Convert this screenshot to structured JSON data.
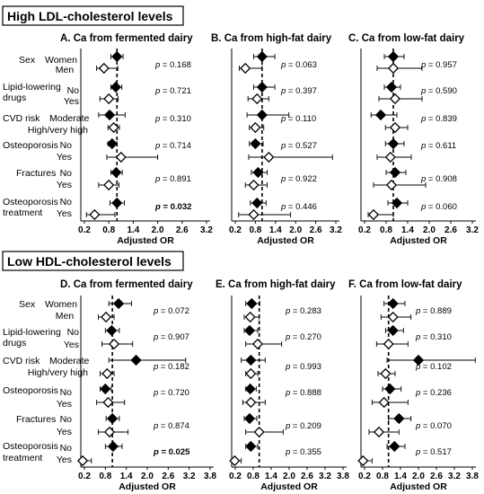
{
  "sections": [
    {
      "title": "High LDL-cholesterol levels"
    },
    {
      "title": "Low HDL-cholesterol levels"
    }
  ],
  "row_labels": {
    "groups": [
      {
        "label": "Sex",
        "levels": [
          "Women",
          "Men"
        ]
      },
      {
        "label": "Lipid-lowering drugs",
        "label_lines": [
          "Lipid-lowering",
          "drugs"
        ],
        "levels": [
          "No",
          "Yes"
        ]
      },
      {
        "label": "CVD risk",
        "levels": [
          "Moderate",
          "High/very high"
        ]
      },
      {
        "label": "Osteoporosis",
        "levels": [
          "No",
          "Yes"
        ]
      },
      {
        "label": "Fractures",
        "levels": [
          "No",
          "Yes"
        ]
      },
      {
        "label": "Osteoporosis treatment",
        "label_lines": [
          "Osteoporosis",
          "treatment"
        ],
        "levels": [
          "No",
          "Yes"
        ]
      }
    ]
  },
  "legend_note": {
    "filled_marker": "diamond-filled",
    "open_marker": "diamond-open",
    "reference_line": "dashed at OR = 1"
  },
  "chart_data": [
    {
      "type": "forest",
      "title": "A. Ca from fermented dairy",
      "xlabel": "Adjusted OR",
      "xlim": [
        0.0,
        3.2
      ],
      "xticks": [
        0.2,
        0.8,
        1.4,
        2.0,
        2.6,
        3.2
      ],
      "reference": 1.0,
      "rows": [
        {
          "group": "Sex",
          "level": "Women",
          "or": 1.0,
          "lo": 0.85,
          "hi": 1.15
        },
        {
          "group": "Sex",
          "level": "Men",
          "or": 0.68,
          "lo": 0.5,
          "hi": 1.02
        },
        {
          "group": "Lipid-lowering drugs",
          "level": "No",
          "or": 0.97,
          "lo": 0.85,
          "hi": 1.12
        },
        {
          "group": "Lipid-lowering drugs",
          "level": "Yes",
          "or": 0.8,
          "lo": 0.58,
          "hi": 1.03
        },
        {
          "group": "CVD risk",
          "level": "Moderate",
          "or": 0.82,
          "lo": 0.55,
          "hi": 1.2
        },
        {
          "group": "CVD risk",
          "level": "High/very high",
          "or": 0.92,
          "lo": 0.78,
          "hi": 1.06
        },
        {
          "group": "Osteoporosis",
          "level": "No",
          "or": 0.88,
          "lo": 0.78,
          "hi": 1.0
        },
        {
          "group": "Osteoporosis",
          "level": "Yes",
          "or": 1.1,
          "lo": 0.75,
          "hi": 2.0
        },
        {
          "group": "Fractures",
          "level": "No",
          "or": 0.98,
          "lo": 0.85,
          "hi": 1.13
        },
        {
          "group": "Fractures",
          "level": "Yes",
          "or": 0.8,
          "lo": 0.55,
          "hi": 1.05
        },
        {
          "group": "Osteoporosis treatment",
          "level": "No",
          "or": 1.0,
          "lo": 0.83,
          "hi": 1.18
        },
        {
          "group": "Osteoporosis treatment",
          "level": "Yes",
          "or": 0.45,
          "lo": 0.25,
          "hi": 0.95
        }
      ],
      "p_values": [
        "p = 0.168",
        "p = 0.721",
        "p = 0.310",
        "p = 0.714",
        "p = 0.891",
        "p = 0.032"
      ],
      "p_bold": [
        false,
        false,
        false,
        false,
        false,
        true
      ]
    },
    {
      "type": "forest",
      "title": "B. Ca from high-fat dairy",
      "xlabel": "Adjusted OR",
      "xlim": [
        0.0,
        3.2
      ],
      "xticks": [
        0.2,
        0.8,
        1.4,
        2.0,
        2.6,
        3.2
      ],
      "reference": 1.0,
      "rows": [
        {
          "group": "Sex",
          "level": "Women",
          "or": 1.0,
          "lo": 0.75,
          "hi": 1.38
        },
        {
          "group": "Sex",
          "level": "Men",
          "or": 0.5,
          "lo": 0.32,
          "hi": 1.0
        },
        {
          "group": "Lipid-lowering drugs",
          "level": "No",
          "or": 1.0,
          "lo": 0.75,
          "hi": 1.38
        },
        {
          "group": "Lipid-lowering drugs",
          "level": "Yes",
          "or": 0.85,
          "lo": 0.58,
          "hi": 1.2
        },
        {
          "group": "CVD risk",
          "level": "Moderate",
          "or": 1.0,
          "lo": 0.55,
          "hi": 1.8
        },
        {
          "group": "CVD risk",
          "level": "High/very high",
          "or": 0.8,
          "lo": 0.62,
          "hi": 1.05
        },
        {
          "group": "Osteoporosis",
          "level": "No",
          "or": 0.8,
          "lo": 0.62,
          "hi": 1.03
        },
        {
          "group": "Osteoporosis",
          "level": "Yes",
          "or": 1.2,
          "lo": 0.6,
          "hi": 3.1
        },
        {
          "group": "Fractures",
          "level": "No",
          "or": 0.88,
          "lo": 0.68,
          "hi": 1.15
        },
        {
          "group": "Fractures",
          "level": "Yes",
          "or": 0.75,
          "lo": 0.5,
          "hi": 1.15
        },
        {
          "group": "Osteoporosis treatment",
          "level": "No",
          "or": 0.85,
          "lo": 0.65,
          "hi": 1.12
        },
        {
          "group": "Osteoporosis treatment",
          "level": "Yes",
          "or": 0.75,
          "lo": 0.3,
          "hi": 1.85
        }
      ],
      "p_values": [
        "p = 0.063",
        "p = 0.397",
        "p = 0.110",
        "p = 0.527",
        "p = 0.922",
        "p = 0.446"
      ],
      "p_bold": [
        false,
        false,
        false,
        false,
        false,
        false
      ]
    },
    {
      "type": "forest",
      "title": "C. Ca from low-fat dairy",
      "xlabel": "Adjusted OR",
      "xlim": [
        0.0,
        3.2
      ],
      "xticks": [
        0.2,
        0.8,
        1.4,
        2.0,
        2.6,
        3.2
      ],
      "reference": 1.0,
      "rows": [
        {
          "group": "Sex",
          "level": "Women",
          "or": 1.0,
          "lo": 0.75,
          "hi": 1.3
        },
        {
          "group": "Sex",
          "level": "Men",
          "or": 1.0,
          "lo": 0.55,
          "hi": 1.8
        },
        {
          "group": "Lipid-lowering drugs",
          "level": "No",
          "or": 0.95,
          "lo": 0.75,
          "hi": 1.2
        },
        {
          "group": "Lipid-lowering drugs",
          "level": "Yes",
          "or": 1.05,
          "lo": 0.6,
          "hi": 1.8
        },
        {
          "group": "CVD risk",
          "level": "Moderate",
          "or": 0.65,
          "lo": 0.38,
          "hi": 1.1
        },
        {
          "group": "CVD risk",
          "level": "High/very high",
          "or": 1.05,
          "lo": 0.78,
          "hi": 1.4
        },
        {
          "group": "Osteoporosis",
          "level": "No",
          "or": 1.0,
          "lo": 0.78,
          "hi": 1.3
        },
        {
          "group": "Osteoporosis",
          "level": "Yes",
          "or": 0.92,
          "lo": 0.55,
          "hi": 1.5
        },
        {
          "group": "Fractures",
          "level": "No",
          "or": 1.05,
          "lo": 0.8,
          "hi": 1.35
        },
        {
          "group": "Fractures",
          "level": "Yes",
          "or": 0.95,
          "lo": 0.45,
          "hi": 1.9
        },
        {
          "group": "Osteoporosis treatment",
          "level": "No",
          "or": 1.1,
          "lo": 0.85,
          "hi": 1.4
        },
        {
          "group": "Osteoporosis treatment",
          "level": "Yes",
          "or": 0.45,
          "lo": 0.3,
          "hi": 1.0
        }
      ],
      "p_values": [
        "p = 0.957",
        "p = 0.590",
        "p = 0.839",
        "p = 0.611",
        "p = 0.908",
        "p = 0.060"
      ],
      "p_bold": [
        false,
        false,
        false,
        false,
        false,
        false
      ]
    },
    {
      "type": "forest",
      "title": "D. Ca from fermented dairy",
      "xlabel": "Adjusted OR",
      "xlim": [
        0.0,
        3.8
      ],
      "xticks": [
        0.2,
        0.8,
        1.4,
        2.0,
        2.6,
        3.2,
        3.8
      ],
      "reference": 1.0,
      "rows": [
        {
          "group": "Sex",
          "level": "Women",
          "or": 1.18,
          "lo": 0.9,
          "hi": 1.55
        },
        {
          "group": "Sex",
          "level": "Men",
          "or": 0.82,
          "lo": 0.6,
          "hi": 1.05
        },
        {
          "group": "Lipid-lowering drugs",
          "level": "No",
          "or": 0.98,
          "lo": 0.8,
          "hi": 1.2
        },
        {
          "group": "Lipid-lowering drugs",
          "level": "Yes",
          "or": 1.05,
          "lo": 0.7,
          "hi": 1.58
        },
        {
          "group": "CVD risk",
          "level": "Moderate",
          "or": 1.68,
          "lo": 0.9,
          "hi": 3.1
        },
        {
          "group": "CVD risk",
          "level": "High/very high",
          "or": 0.85,
          "lo": 0.65,
          "hi": 1.05
        },
        {
          "group": "Osteoporosis",
          "level": "No",
          "or": 0.8,
          "lo": 0.65,
          "hi": 0.97
        },
        {
          "group": "Osteoporosis",
          "level": "Yes",
          "or": 0.88,
          "lo": 0.55,
          "hi": 1.35
        },
        {
          "group": "Fractures",
          "level": "No",
          "or": 1.0,
          "lo": 0.82,
          "hi": 1.2
        },
        {
          "group": "Fractures",
          "level": "Yes",
          "or": 0.92,
          "lo": 0.6,
          "hi": 1.45
        },
        {
          "group": "Osteoporosis treatment",
          "level": "No",
          "or": 1.02,
          "lo": 0.8,
          "hi": 1.28
        },
        {
          "group": "Osteoporosis treatment",
          "level": "Yes",
          "or": 0.15,
          "lo": 0.1,
          "hi": 0.4
        }
      ],
      "p_values": [
        "p = 0.072",
        "p = 0.907",
        "p = 0.182",
        "p = 0.720",
        "p = 0.874",
        "p = 0.025"
      ],
      "p_bold": [
        false,
        false,
        false,
        false,
        false,
        true
      ]
    },
    {
      "type": "forest",
      "title": "E. Ca from high-fat dairy",
      "xlabel": "Adjusted OR",
      "xlim": [
        0.0,
        3.8
      ],
      "xticks": [
        0.2,
        0.8,
        1.4,
        2.0,
        2.6,
        3.2,
        3.8
      ],
      "reference": 1.0,
      "rows": [
        {
          "group": "Sex",
          "level": "Women",
          "or": 0.75,
          "lo": 0.55,
          "hi": 1.02
        },
        {
          "group": "Sex",
          "level": "Men",
          "or": 0.7,
          "lo": 0.5,
          "hi": 1.0
        },
        {
          "group": "Lipid-lowering drugs",
          "level": "No",
          "or": 0.68,
          "lo": 0.5,
          "hi": 0.95
        },
        {
          "group": "Lipid-lowering drugs",
          "level": "Yes",
          "or": 0.95,
          "lo": 0.55,
          "hi": 1.75
        },
        {
          "group": "CVD risk",
          "level": "Moderate",
          "or": 0.72,
          "lo": 0.4,
          "hi": 1.2
        },
        {
          "group": "CVD risk",
          "level": "High/very high",
          "or": 0.72,
          "lo": 0.55,
          "hi": 0.95
        },
        {
          "group": "Osteoporosis",
          "level": "No",
          "or": 0.7,
          "lo": 0.55,
          "hi": 0.9
        },
        {
          "group": "Osteoporosis",
          "level": "Yes",
          "or": 0.72,
          "lo": 0.45,
          "hi": 1.2
        },
        {
          "group": "Fractures",
          "level": "No",
          "or": 0.68,
          "lo": 0.5,
          "hi": 0.92
        },
        {
          "group": "Fractures",
          "level": "Yes",
          "or": 1.0,
          "lo": 0.55,
          "hi": 1.8
        },
        {
          "group": "Osteoporosis treatment",
          "level": "No",
          "or": 0.72,
          "lo": 0.55,
          "hi": 0.95
        },
        {
          "group": "Osteoporosis treatment",
          "level": "Yes",
          "or": 0.18,
          "lo": 0.1,
          "hi": 0.4
        }
      ],
      "p_values": [
        "p = 0.283",
        "p = 0.270",
        "p = 0.993",
        "p = 0.888",
        "p = 0.209",
        "p = 0.355"
      ],
      "p_bold": [
        false,
        false,
        false,
        false,
        false,
        false
      ]
    },
    {
      "type": "forest",
      "title": "F. Ca from low-fat dairy",
      "xlabel": "Adjusted OR",
      "xlim": [
        0.0,
        3.8
      ],
      "xticks": [
        0.2,
        0.8,
        1.4,
        2.0,
        2.6,
        3.2,
        3.8
      ],
      "reference": 1.0,
      "rows": [
        {
          "group": "Sex",
          "level": "Women",
          "or": 1.15,
          "lo": 0.85,
          "hi": 1.55
        },
        {
          "group": "Sex",
          "level": "Men",
          "or": 1.15,
          "lo": 0.75,
          "hi": 1.75
        },
        {
          "group": "Lipid-lowering drugs",
          "level": "No",
          "or": 1.15,
          "lo": 0.9,
          "hi": 1.5
        },
        {
          "group": "Lipid-lowering drugs",
          "level": "Yes",
          "or": 1.0,
          "lo": 0.6,
          "hi": 1.65
        },
        {
          "group": "CVD risk",
          "level": "Moderate",
          "or": 2.0,
          "lo": 0.95,
          "hi": 3.9
        },
        {
          "group": "CVD risk",
          "level": "High/very high",
          "or": 0.9,
          "lo": 0.65,
          "hi": 1.22
        },
        {
          "group": "Osteoporosis",
          "level": "No",
          "or": 1.05,
          "lo": 0.8,
          "hi": 1.42
        },
        {
          "group": "Osteoporosis",
          "level": "Yes",
          "or": 0.85,
          "lo": 0.45,
          "hi": 1.65
        },
        {
          "group": "Fractures",
          "level": "No",
          "or": 1.35,
          "lo": 1.0,
          "hi": 1.75
        },
        {
          "group": "Fractures",
          "level": "Yes",
          "or": 0.68,
          "lo": 0.35,
          "hi": 1.35
        },
        {
          "group": "Osteoporosis treatment",
          "level": "No",
          "or": 1.2,
          "lo": 0.95,
          "hi": 1.55
        },
        {
          "group": "Osteoporosis treatment",
          "level": "Yes",
          "or": 0.15,
          "lo": 0.08,
          "hi": 0.45
        }
      ],
      "p_values": [
        "p = 0.889",
        "p = 0.310",
        "p = 0.102",
        "p = 0.236",
        "p = 0.070",
        "p = 0.517"
      ],
      "p_bold": [
        false,
        false,
        false,
        false,
        false,
        false
      ]
    }
  ]
}
